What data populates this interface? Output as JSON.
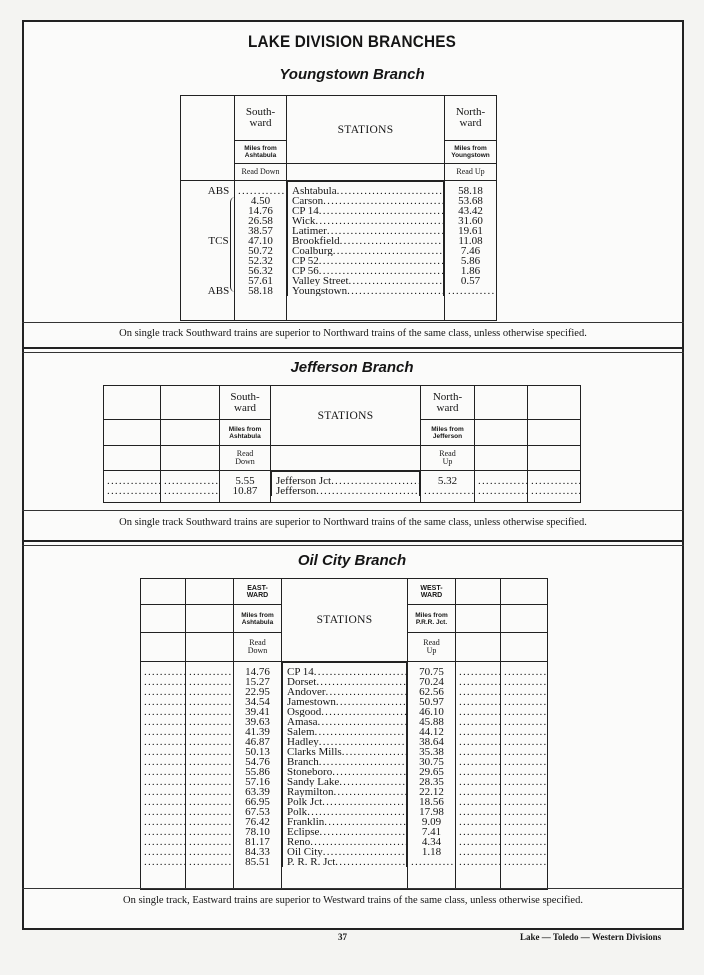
{
  "page_title": "LAKE DIVISION BRANCHES",
  "youngstown": {
    "title": "Youngstown Branch",
    "southward": "South-\nward",
    "stations_header": "STATIONS",
    "northward": "North-\nward",
    "miles_down": "Miles from Ashtabula",
    "miles_up": "Miles from Youngstown",
    "read_down": "Read Down",
    "read_up": "Read Up",
    "stations": [
      {
        "signal": "ABS",
        "down": "",
        "name": "Ashtabula",
        "up": "58.18"
      },
      {
        "signal": "",
        "down": "4.50",
        "name": "Carson",
        "up": "53.68"
      },
      {
        "signal": "",
        "down": "14.76",
        "name": "CP 14",
        "up": "43.42"
      },
      {
        "signal": "",
        "down": "26.58",
        "name": "Wick",
        "up": "31.60"
      },
      {
        "signal": "",
        "down": "38.57",
        "name": "Latimer",
        "up": "19.61"
      },
      {
        "signal": "TCS",
        "down": "47.10",
        "name": "Brookfield",
        "up": "11.08"
      },
      {
        "signal": "",
        "down": "50.72",
        "name": "Coalburg",
        "up": "7.46"
      },
      {
        "signal": "",
        "down": "52.32",
        "name": "CP 52",
        "up": "5.86"
      },
      {
        "signal": "",
        "down": "56.32",
        "name": "CP 56",
        "up": "1.86"
      },
      {
        "signal": "",
        "down": "57.61",
        "name": "Valley Street",
        "up": "0.57"
      },
      {
        "signal": "ABS",
        "down": "58.18",
        "name": "Youngstown",
        "up": ""
      }
    ],
    "note": "On single track Southward trains are superior to Northward trains of the same class, unless otherwise specified."
  },
  "jefferson": {
    "title": "Jefferson Branch",
    "southward": "South-\nward",
    "stations_header": "STATIONS",
    "northward": "North-\nward",
    "miles_down": "Miles from Ashtabula",
    "miles_up": "Miles from Jefferson",
    "read_down": "Read Down",
    "read_up": "Read Up",
    "stations": [
      {
        "down": "5.55",
        "name": "Jefferson Jct",
        "up": "5.32"
      },
      {
        "down": "10.87",
        "name": "Jefferson",
        "up": ""
      }
    ],
    "note": "On single track Southward trains are superior to Northward trains of the same class, unless otherwise specified."
  },
  "oil_city": {
    "title": "Oil City Branch",
    "eastward": "EAST-\nWARD",
    "stations_header": "STATIONS",
    "westward": "WEST-\nWARD",
    "miles_down": "Miles from Ashtabula",
    "miles_up": "Miles from P.R.R. Jct.",
    "read_down": "Read Down",
    "read_up": "Read Up",
    "stations": [
      {
        "down": "14.76",
        "name": "CP 14",
        "up": "70.75"
      },
      {
        "down": "15.27",
        "name": "Dorset",
        "up": "70.24"
      },
      {
        "down": "22.95",
        "name": "Andover",
        "up": "62.56"
      },
      {
        "down": "34.54",
        "name": "Jamestown",
        "up": "50.97"
      },
      {
        "down": "39.41",
        "name": "Osgood",
        "up": "46.10"
      },
      {
        "down": "39.63",
        "name": "Amasa",
        "up": "45.88"
      },
      {
        "down": "41.39",
        "name": "Salem",
        "up": "44.12"
      },
      {
        "down": "46.87",
        "name": "Hadley",
        "up": "38.64"
      },
      {
        "down": "50.13",
        "name": "Clarks Mills",
        "up": "35.38"
      },
      {
        "down": "54.76",
        "name": "Branch",
        "up": "30.75"
      },
      {
        "down": "55.86",
        "name": "Stoneboro",
        "up": "29.65"
      },
      {
        "down": "57.16",
        "name": "Sandy Lake",
        "up": "28.35"
      },
      {
        "down": "63.39",
        "name": "Raymilton",
        "up": "22.12"
      },
      {
        "down": "66.95",
        "name": "Polk Jct",
        "up": "18.56"
      },
      {
        "down": "67.53",
        "name": "Polk",
        "up": "17.98"
      },
      {
        "down": "76.42",
        "name": "Franklin",
        "up": "9.09"
      },
      {
        "down": "78.10",
        "name": "Eclipse",
        "up": "7.41"
      },
      {
        "down": "81.17",
        "name": "Reno",
        "up": "4.34"
      },
      {
        "down": "84.33",
        "name": "Oil City",
        "up": "1.18"
      },
      {
        "down": "85.51",
        "name": "P. R. R. Jct",
        "up": ""
      }
    ],
    "note": "On single track, Eastward trains are superior to Westward trains of the same class, unless otherwise specified."
  },
  "footer": {
    "page_number": "37",
    "divisions": "Lake — Toledo — Western Divisions"
  }
}
